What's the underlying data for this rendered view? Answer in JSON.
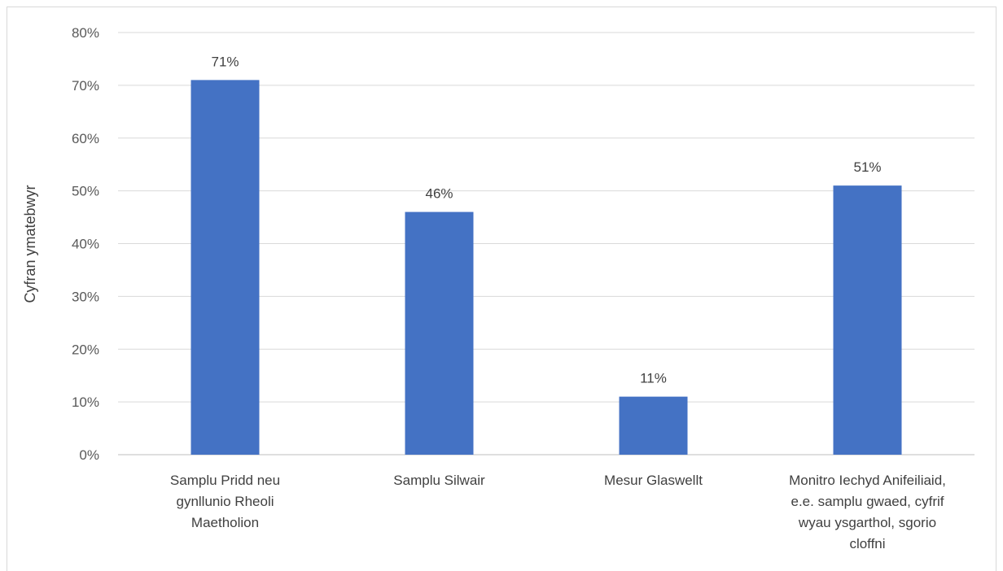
{
  "chart_data": {
    "type": "bar",
    "categories": [
      [
        "Samplu Pridd neu",
        "gynllunio Rheoli",
        "Maetholion"
      ],
      [
        "Samplu Silwair"
      ],
      [
        "Mesur Glaswellt"
      ],
      [
        "Monitro Iechyd Anifeiliaid,",
        "e.e. samplu gwaed, cyfrif",
        "wyau ysgarthol, sgorio",
        "cloffni"
      ]
    ],
    "values": [
      71,
      46,
      11,
      51
    ],
    "data_labels": [
      "71%",
      "46%",
      "11%",
      "51%"
    ],
    "title": "",
    "xlabel": "",
    "ylabel": "Cyfran ymatebwyr",
    "ylim": [
      0,
      80
    ],
    "yticks": [
      0,
      10,
      20,
      30,
      40,
      50,
      60,
      70,
      80
    ],
    "ytick_labels": [
      "0%",
      "10%",
      "20%",
      "30%",
      "40%",
      "50%",
      "60%",
      "70%",
      "80%"
    ],
    "grid": true,
    "legend": "none",
    "bar_color": "#4472c4",
    "gridline_color": "#d9d9d9"
  }
}
